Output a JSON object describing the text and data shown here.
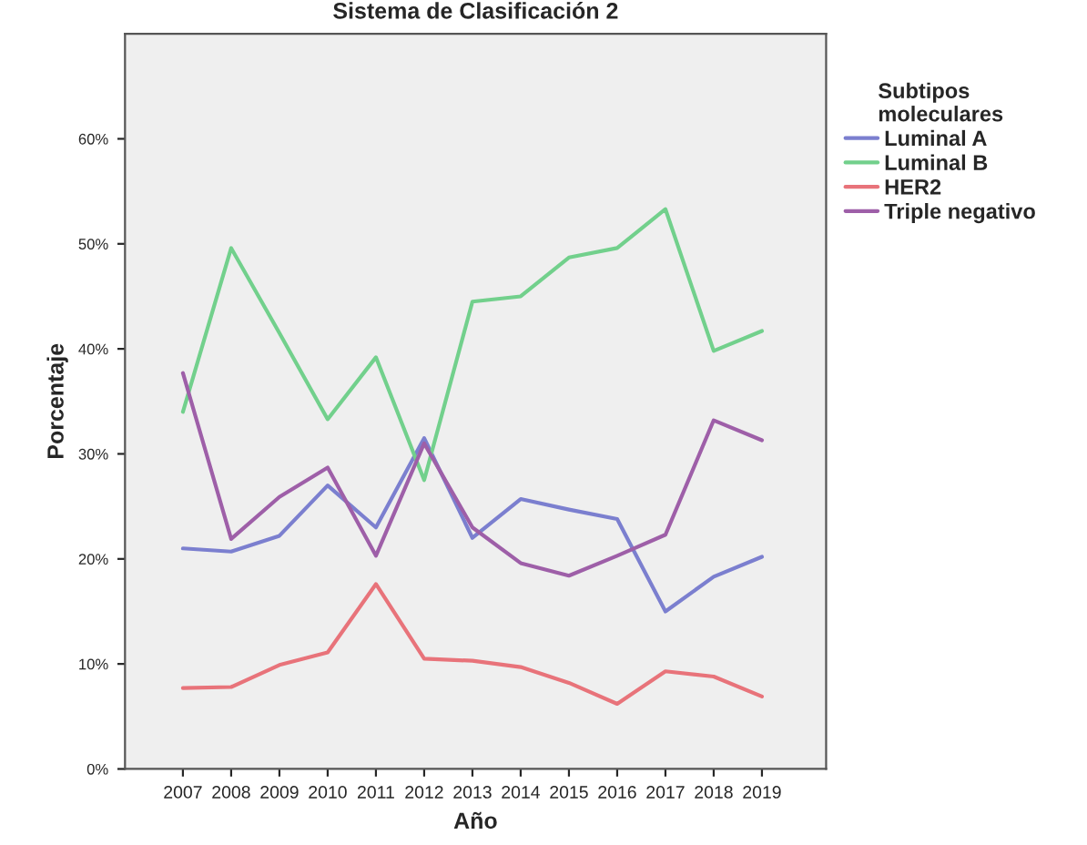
{
  "chart_data": {
    "type": "line",
    "title": "Sistema de Clasificación 2",
    "xlabel": "Año",
    "ylabel": "Porcentaje",
    "legend_title": "Subtipos\nmoleculares",
    "legend": "right",
    "categories": [
      "2007",
      "2008",
      "2009",
      "2010",
      "2011",
      "2012",
      "2013",
      "2014",
      "2015",
      "2016",
      "2017",
      "2018",
      "2019"
    ],
    "ylim": [
      0,
      70
    ],
    "yticks": [
      {
        "value": 0,
        "label": "0%"
      },
      {
        "value": 10,
        "label": "10%"
      },
      {
        "value": 20,
        "label": "20%"
      },
      {
        "value": 30,
        "label": "30%"
      },
      {
        "value": 40,
        "label": "40%"
      },
      {
        "value": 50,
        "label": "50%"
      },
      {
        "value": 60,
        "label": "60%"
      }
    ],
    "grid": false,
    "marker": "none",
    "line_style": "solid",
    "series": [
      {
        "name": "Luminal A",
        "color": "#7b7fcf",
        "values": [
          21,
          20.7,
          22.2,
          27,
          23,
          31.5,
          22,
          25.7,
          24.7,
          23.8,
          15,
          18.3,
          20.2
        ]
      },
      {
        "name": "Luminal B",
        "color": "#72d08c",
        "values": [
          34,
          49.6,
          41.5,
          33.3,
          39.2,
          27.5,
          44.5,
          45,
          48.7,
          49.6,
          53.3,
          39.8,
          41.7
        ]
      },
      {
        "name": "HER2",
        "color": "#e8737a",
        "values": [
          7.7,
          7.8,
          9.9,
          11.1,
          17.6,
          10.5,
          10.3,
          9.7,
          8.2,
          6.2,
          9.3,
          8.8,
          6.9
        ]
      },
      {
        "name": "Triple negativo",
        "color": "#9e5fa8",
        "values": [
          37.7,
          21.9,
          25.9,
          28.7,
          20.3,
          31,
          23,
          19.6,
          18.4,
          20.3,
          22.3,
          33.2,
          31.3
        ]
      }
    ]
  }
}
